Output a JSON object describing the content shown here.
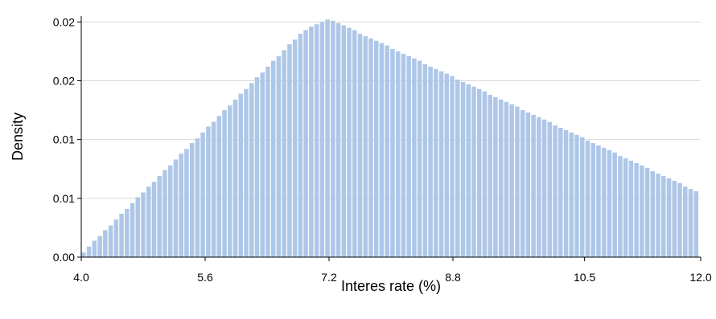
{
  "chart_data": {
    "type": "bar",
    "title": "",
    "xlabel": "Interes rate (%)",
    "ylabel": "Density",
    "xlim": [
      4.0,
      12.0
    ],
    "ylim": [
      0.0,
      0.0205
    ],
    "x_ticks": [
      4.0,
      5.6,
      7.2,
      8.8,
      10.5,
      12.0
    ],
    "x_tick_labels": [
      "4.0",
      "5.6",
      "7.2",
      "8.8",
      "10.5",
      "12.0"
    ],
    "y_ticks": [
      0.0,
      0.005,
      0.01,
      0.015,
      0.02
    ],
    "y_tick_labels": [
      "0.00",
      "0.01",
      "0.01",
      "0.02",
      "0.02"
    ],
    "grid": "horizontal",
    "bar_color": "#aec7e8",
    "series": [
      {
        "x": [
          4.03,
          4.1,
          4.17,
          4.24,
          4.31,
          4.38,
          4.45,
          4.52,
          4.59,
          4.66,
          4.73,
          4.8,
          4.87,
          4.94,
          5.01,
          5.08,
          5.15,
          5.22,
          5.29,
          5.36,
          5.43,
          5.5,
          5.57,
          5.64,
          5.71,
          5.78,
          5.85,
          5.92,
          5.99,
          6.06,
          6.13,
          6.2,
          6.27,
          6.34,
          6.41,
          6.48,
          6.55,
          6.62,
          6.69,
          6.76,
          6.83,
          6.9,
          6.97,
          7.04,
          7.11,
          7.18,
          7.25,
          7.32,
          7.39,
          7.46,
          7.53,
          7.6,
          7.67,
          7.74,
          7.81,
          7.88,
          7.95,
          8.02,
          8.09,
          8.16,
          8.23,
          8.3,
          8.37,
          8.44,
          8.51,
          8.58,
          8.65,
          8.72,
          8.79,
          8.86,
          8.93,
          9.0,
          9.07,
          9.14,
          9.21,
          9.28,
          9.35,
          9.42,
          9.49,
          9.56,
          9.63,
          9.7,
          9.77,
          9.84,
          9.91,
          9.98,
          10.05,
          10.12,
          10.19,
          10.26,
          10.33,
          10.4,
          10.47,
          10.54,
          10.61,
          10.68,
          10.75,
          10.82,
          10.89,
          10.96,
          11.03,
          11.1,
          11.17,
          11.24,
          11.31,
          11.38,
          11.45,
          11.52,
          11.59,
          11.66,
          11.73,
          11.8,
          11.87,
          11.94
        ],
        "values": [
          0.0004,
          0.0009,
          0.0014,
          0.0018,
          0.0023,
          0.0027,
          0.0032,
          0.0037,
          0.0041,
          0.0046,
          0.0051,
          0.0055,
          0.006,
          0.0064,
          0.0069,
          0.0074,
          0.0078,
          0.0083,
          0.0088,
          0.0092,
          0.0097,
          0.0101,
          0.0106,
          0.0111,
          0.0115,
          0.012,
          0.0125,
          0.0129,
          0.0134,
          0.0139,
          0.0143,
          0.0148,
          0.0153,
          0.0157,
          0.0162,
          0.0167,
          0.0171,
          0.0176,
          0.0181,
          0.0185,
          0.019,
          0.0193,
          0.0196,
          0.0198,
          0.02,
          0.0202,
          0.0201,
          0.0199,
          0.0197,
          0.0195,
          0.0193,
          0.019,
          0.0188,
          0.0186,
          0.0184,
          0.0182,
          0.018,
          0.0177,
          0.0175,
          0.0173,
          0.0171,
          0.0169,
          0.0167,
          0.0164,
          0.0162,
          0.016,
          0.0158,
          0.0156,
          0.0154,
          0.0151,
          0.0149,
          0.0147,
          0.0145,
          0.0143,
          0.0141,
          0.0138,
          0.0136,
          0.0134,
          0.0132,
          0.013,
          0.0128,
          0.0125,
          0.0123,
          0.0121,
          0.0119,
          0.0117,
          0.0115,
          0.0112,
          0.011,
          0.0108,
          0.0106,
          0.0104,
          0.0102,
          0.0099,
          0.0097,
          0.0095,
          0.0093,
          0.0091,
          0.0089,
          0.0086,
          0.0084,
          0.0082,
          0.008,
          0.0078,
          0.0076,
          0.0073,
          0.0071,
          0.0069,
          0.0067,
          0.0065,
          0.0063,
          0.006,
          0.0058,
          0.0056
        ]
      }
    ]
  }
}
